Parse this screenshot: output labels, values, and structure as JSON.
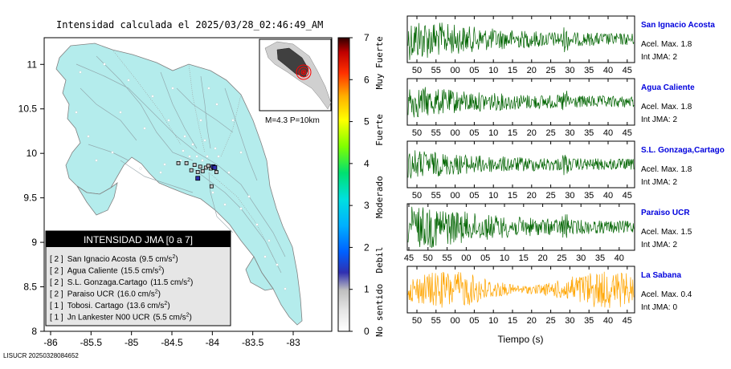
{
  "title": "Intensidad calculada el 2025/03/28_02:46:49_AM",
  "footer_id": "LISUCR 20250328084652",
  "map": {
    "xlim": [
      -86.0,
      -82.5
    ],
    "ylim": [
      8.0,
      11.3
    ],
    "x_ticks": [
      "-86",
      "-85.5",
      "-85",
      "-84.5",
      "-84",
      "-83.5",
      "-83"
    ],
    "y_ticks": [
      "8",
      "8.5",
      "9",
      "9.5",
      "10",
      "10.5",
      "11"
    ],
    "inset_label": "M=4.3 P=10km",
    "land_color": "#b4ecec",
    "legend_title": "INTENSIDAD JMA [0 a 7]",
    "legend_items": [
      {
        "level": "[ 2 ]",
        "name": "San Ignacio Acosta",
        "value": "(9.5 cm/s",
        "sup": "2",
        "close": ")"
      },
      {
        "level": "[ 2 ]",
        "name": "Agua Caliente",
        "value": "(15.5 cm/s",
        "sup": "2",
        "close": ")"
      },
      {
        "level": "[ 2 ]",
        "name": "S.L. Gonzaga.Cartago",
        "value": "(11.5 cm/s",
        "sup": "2",
        "close": ")"
      },
      {
        "level": "[ 2 ]",
        "name": "Paraiso UCR",
        "value": "(16.0 cm/s",
        "sup": "2",
        "close": ")"
      },
      {
        "level": "[ 1 ]",
        "name": "Tobosi. Cartago",
        "value": "(13.6 cm/s",
        "sup": "2",
        "close": ")"
      },
      {
        "level": "[ 1 ]",
        "name": "Jn Lankester N00 UCR",
        "value": "(5.5 cm/s",
        "sup": "2",
        "close": ")"
      }
    ]
  },
  "colorbar": {
    "ticks": [
      "0",
      "1",
      "2",
      "3",
      "4",
      "5",
      "6",
      "7"
    ],
    "labels": [
      "No sentido",
      "Debil",
      "Moderado",
      "Fuerte",
      "Muy Fuerte"
    ]
  },
  "waveforms": [
    {
      "name": "San Ignacio Acosta",
      "accel": "Acel. Max. 1.8",
      "jma": "Int JMA: 2",
      "color": "#006400",
      "ticks": [
        "50",
        "55",
        "00",
        "05",
        "10",
        "15",
        "20",
        "25",
        "30",
        "35",
        "40",
        "45"
      ],
      "decay": 0.9
    },
    {
      "name": "Agua Caliente",
      "accel": "Acel. Max. 1.8",
      "jma": "Int JMA: 2",
      "color": "#006400",
      "ticks": [
        "50",
        "55",
        "00",
        "05",
        "10",
        "15",
        "20",
        "25",
        "30",
        "35",
        "40",
        "45"
      ],
      "decay": 0.6
    },
    {
      "name": "S.L. Gonzaga,Cartago",
      "accel": "Acel. Max. 1.8",
      "jma": "Int JMA: 2",
      "color": "#006400",
      "ticks": [
        "50",
        "55",
        "00",
        "05",
        "10",
        "15",
        "20",
        "25",
        "30",
        "35",
        "40",
        "45"
      ],
      "decay": 0.5
    },
    {
      "name": "Paraiso UCR",
      "accel": "Acel. Max. 1.5",
      "jma": "Int JMA: 2",
      "color": "#006400",
      "ticks": [
        "45",
        "50",
        "55",
        "00",
        "05",
        "10",
        "15",
        "20",
        "25",
        "30",
        "35",
        "40"
      ],
      "decay": 1.1
    },
    {
      "name": "La Sabana",
      "accel": "Acel. Max. 0.4",
      "jma": "Int JMA: 0",
      "color": "#ffa500",
      "ticks": [
        "50",
        "55",
        "00",
        "05",
        "10",
        "15",
        "20",
        "25",
        "30",
        "35",
        "40",
        "45"
      ],
      "decay": 0.0
    }
  ],
  "xlabel": "Tiempo (s)",
  "chart_data": [
    {
      "type": "scatter",
      "title": "Intensidad calculada el 2025/03/28_02:46:49_AM",
      "xlim": [
        -86.0,
        -82.5
      ],
      "ylim": [
        8.0,
        11.3
      ],
      "points": [
        {
          "x": -84.42,
          "y": 9.89,
          "jma": 2
        },
        {
          "x": -84.32,
          "y": 9.89,
          "jma": 2
        },
        {
          "x": -84.22,
          "y": 9.87,
          "jma": 2
        },
        {
          "x": -84.15,
          "y": 9.85,
          "jma": 2
        },
        {
          "x": -84.08,
          "y": 9.84,
          "jma": 2
        },
        {
          "x": -84.02,
          "y": 9.83,
          "jma": 2
        },
        {
          "x": -84.05,
          "y": 9.86,
          "jma": 2
        },
        {
          "x": -84.12,
          "y": 9.8,
          "jma": 2
        },
        {
          "x": -83.95,
          "y": 9.79,
          "jma": 2
        },
        {
          "x": -83.99,
          "y": 9.85,
          "jma": 3
        },
        {
          "x": -83.97,
          "y": 9.84,
          "jma": 3
        },
        {
          "x": -84.18,
          "y": 9.79,
          "jma": 2
        },
        {
          "x": -84.26,
          "y": 9.81,
          "jma": 2
        },
        {
          "x": -84.18,
          "y": 9.72,
          "jma": 3
        },
        {
          "x": -84.01,
          "y": 9.63,
          "jma": 2
        }
      ]
    },
    {
      "type": "line",
      "xlabel": "Tiempo (s)",
      "series": [
        {
          "name": "San Ignacio Acosta"
        },
        {
          "name": "Agua Caliente"
        },
        {
          "name": "S.L. Gonzaga,Cartago"
        },
        {
          "name": "Paraiso UCR"
        },
        {
          "name": "La Sabana"
        }
      ]
    }
  ]
}
